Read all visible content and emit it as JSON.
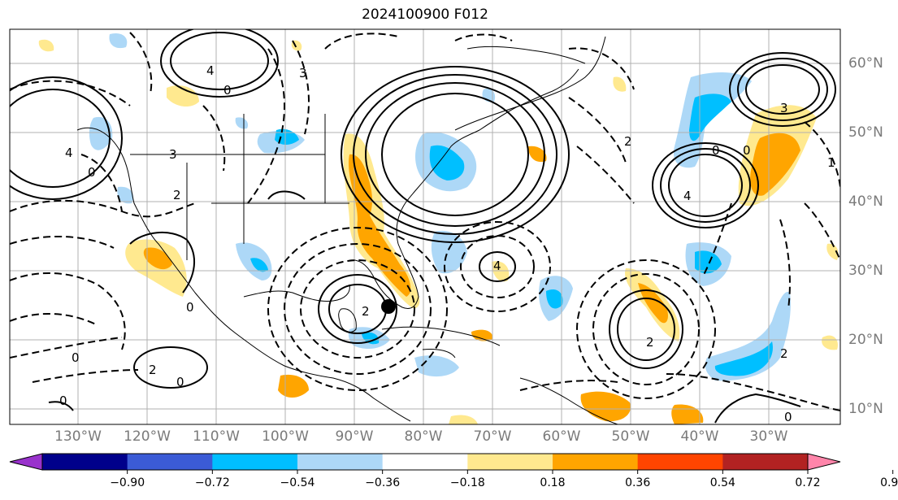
{
  "title": "2024100900 F012",
  "lon_labels": [
    {
      "text": "130°W",
      "lon": -130
    },
    {
      "text": "120°W",
      "lon": -120
    },
    {
      "text": "110°W",
      "lon": -110
    },
    {
      "text": "100°W",
      "lon": -100
    },
    {
      "text": "90°W",
      "lon": -90
    },
    {
      "text": "80°W",
      "lon": -80
    },
    {
      "text": "70°W",
      "lon": -70
    },
    {
      "text": "60°W",
      "lon": -60
    },
    {
      "text": "50°W",
      "lon": -50
    },
    {
      "text": "40°W",
      "lon": -40
    },
    {
      "text": "30°W",
      "lon": -30
    }
  ],
  "lat_labels": [
    {
      "text": "60°N",
      "lat": 60
    },
    {
      "text": "50°N",
      "lat": 50
    },
    {
      "text": "40°N",
      "lat": 40
    },
    {
      "text": "30°N",
      "lat": 30
    },
    {
      "text": "20°N",
      "lat": 20
    },
    {
      "text": "10°N",
      "lat": 10
    }
  ],
  "colorbar": {
    "ticks": [
      "−0.90",
      "−0.72",
      "−0.54",
      "−0.36",
      "−0.18",
      "0.18",
      "0.36",
      "0.54",
      "0.72",
      "0.90"
    ],
    "colors": [
      "#9932cc",
      "#00008b",
      "#3b5bd6",
      "#00bfff",
      "#add8f7",
      "#ffffff",
      "#ffe98f",
      "#ffa500",
      "#ff4500",
      "#b22222",
      "#ff85aa"
    ]
  },
  "storm_marker": {
    "lon": -85.2,
    "lat": 24.8
  }
}
